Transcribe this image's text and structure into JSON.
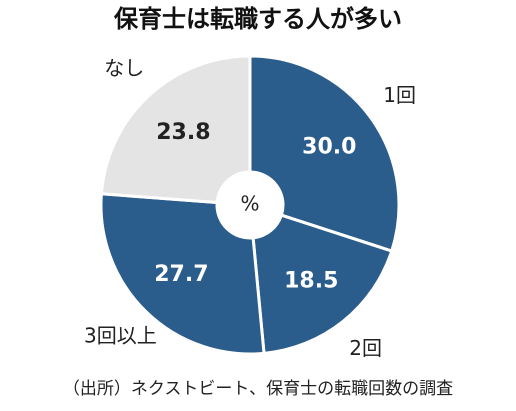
{
  "chart_data": {
    "type": "donut",
    "title": "保育士は転職する人が多い",
    "center_label": "%",
    "categories": [
      "1回",
      "2回",
      "3回以上",
      "なし"
    ],
    "values": [
      30.0,
      18.5,
      27.7,
      23.8
    ],
    "value_labels": [
      "30.0",
      "18.5",
      "27.7",
      "23.8"
    ],
    "colors": [
      "#2b5d8c",
      "#2b5d8c",
      "#2b5d8c",
      "#e4e4e4"
    ],
    "source": "（出所）ネクストビート、保育士の転職回数の調査"
  }
}
